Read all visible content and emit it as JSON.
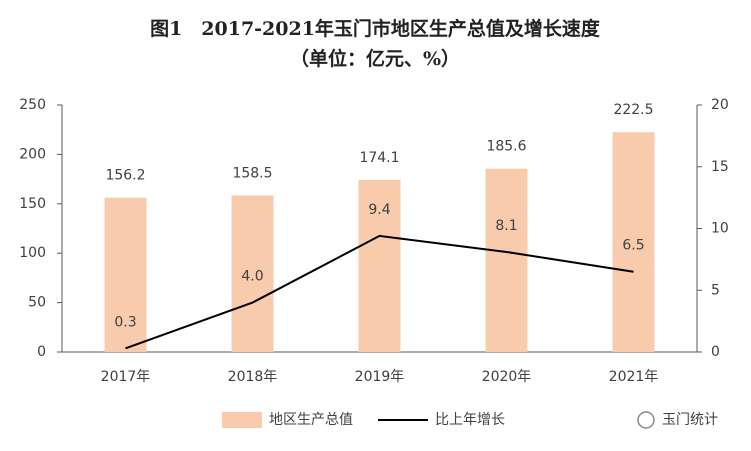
{
  "chart_data": {
    "type": "bar-line",
    "title": "图1　2017-2021年玉门市地区生产总值及增长速度",
    "subtitle": "（单位：亿元、%）",
    "categories": [
      "2017年",
      "2018年",
      "2019年",
      "2020年",
      "2021年"
    ],
    "series": [
      {
        "name": "地区生产总值",
        "type": "bar",
        "color": "#f8cbad",
        "values": [
          156.2,
          158.5,
          174.1,
          185.6,
          222.5
        ]
      },
      {
        "name": "比上年增长",
        "type": "line",
        "color": "#000000",
        "axis": "y2",
        "values": [
          0.3,
          4.0,
          9.4,
          8.1,
          6.5
        ],
        "value_labels": [
          "0.3",
          "4.0",
          "9.4",
          "8.1",
          "6.5"
        ]
      }
    ],
    "ylim": [
      0,
      250
    ],
    "yticks": [
      0,
      50,
      100,
      150,
      200,
      250
    ],
    "y2lim": [
      0,
      20
    ],
    "y2ticks": [
      0,
      5,
      10,
      15,
      20
    ],
    "legend": "bottom",
    "watermark": "玉门统计"
  }
}
